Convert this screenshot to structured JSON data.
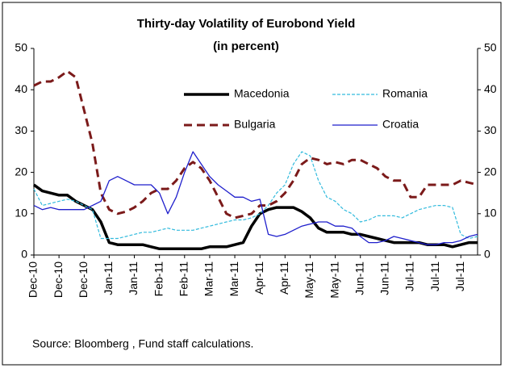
{
  "chart_data": {
    "type": "line",
    "title": "Thirty-day Volatility of Eurobond Yield",
    "subtitle": "(in percent)",
    "source": "Source: Bloomberg , Fund staff calculations.",
    "categories": [
      "Dec-10",
      null,
      null,
      "Dec-10",
      null,
      null,
      "Dec-10",
      null,
      null,
      "Jan-11",
      null,
      null,
      "Jan-11",
      null,
      null,
      "Feb-11",
      null,
      null,
      "Feb-11",
      null,
      null,
      "Mar-11",
      null,
      null,
      "Mar-11",
      null,
      null,
      "Apr-11",
      null,
      null,
      "Apr-11",
      null,
      null,
      "May-11",
      null,
      null,
      "May-11",
      null,
      null,
      "Jun-11",
      null,
      null,
      "Jun-11",
      null,
      null,
      "Jul-11",
      null,
      null,
      "Jul-11",
      null,
      null,
      "Jul-11",
      null,
      null
    ],
    "series": [
      {
        "name": "Macedonia",
        "color": "#000000",
        "dash": false,
        "values": [
          17,
          15.5,
          15,
          14.5,
          14.5,
          13,
          12,
          11,
          8,
          3,
          2.5,
          2.5,
          2.5,
          2.5,
          2,
          1.5,
          1.5,
          1.5,
          1.5,
          1.5,
          1.5,
          2,
          2,
          2,
          2.5,
          3,
          7,
          10,
          11,
          11.5,
          11.5,
          11.5,
          10.5,
          9,
          6.5,
          5.5,
          5.5,
          5.5,
          5,
          5,
          4.5,
          4,
          3.5,
          3,
          3,
          3,
          3,
          2.5,
          2.5,
          2.5,
          2,
          2.5,
          3,
          3
        ]
      },
      {
        "name": "Romania",
        "color": "#33bbdd",
        "dash": true,
        "values": [
          16,
          12,
          12.5,
          13,
          13.5,
          13,
          12,
          11,
          4,
          4,
          4,
          4.5,
          5,
          5.5,
          5.5,
          6,
          6.5,
          6,
          6,
          6,
          6.5,
          7,
          7.5,
          8,
          8.5,
          8.5,
          9,
          10,
          12,
          15,
          17,
          22,
          25,
          24,
          18,
          14,
          13,
          11,
          10,
          8,
          8.5,
          9.5,
          9.5,
          9.5,
          9,
          10,
          11,
          11.5,
          12,
          12,
          11.5,
          5,
          4,
          4.5
        ]
      },
      {
        "name": "Bulgaria",
        "color": "#7b1a1a",
        "dash": true,
        "values": [
          41,
          42,
          42,
          43,
          44.5,
          43,
          35,
          27,
          15,
          11,
          10,
          10.5,
          11.5,
          13,
          15,
          16,
          16,
          18,
          21,
          22.5,
          21,
          18,
          14,
          10,
          9,
          9.5,
          10,
          12,
          12,
          13,
          15,
          18,
          22,
          23.5,
          23,
          22,
          22.5,
          22,
          23,
          23,
          22,
          21,
          19,
          18,
          18,
          14,
          14,
          17,
          17,
          17,
          17,
          18,
          17.5,
          17
        ]
      },
      {
        "name": "Croatia",
        "color": "#1f1fcc",
        "dash": false,
        "values": [
          12,
          11,
          11.5,
          11,
          11,
          11,
          11,
          12,
          13,
          18,
          19,
          18,
          17,
          17,
          17,
          15,
          10,
          14,
          20,
          25,
          22,
          19,
          17,
          15.5,
          14,
          14,
          13,
          13.5,
          5,
          4.5,
          5,
          6,
          7,
          7.5,
          8,
          8,
          7,
          7,
          6.5,
          4.5,
          3,
          3,
          3.5,
          4.5,
          4,
          3.5,
          3,
          2.5,
          2.5,
          3,
          3,
          3.5,
          4.5,
          5
        ]
      }
    ],
    "ylim": [
      0,
      50
    ],
    "yticks": [
      0,
      10,
      20,
      30,
      40,
      50
    ],
    "y2lim": [
      0,
      50
    ],
    "y2ticks": [
      0,
      10,
      20,
      30,
      40,
      50
    ]
  }
}
